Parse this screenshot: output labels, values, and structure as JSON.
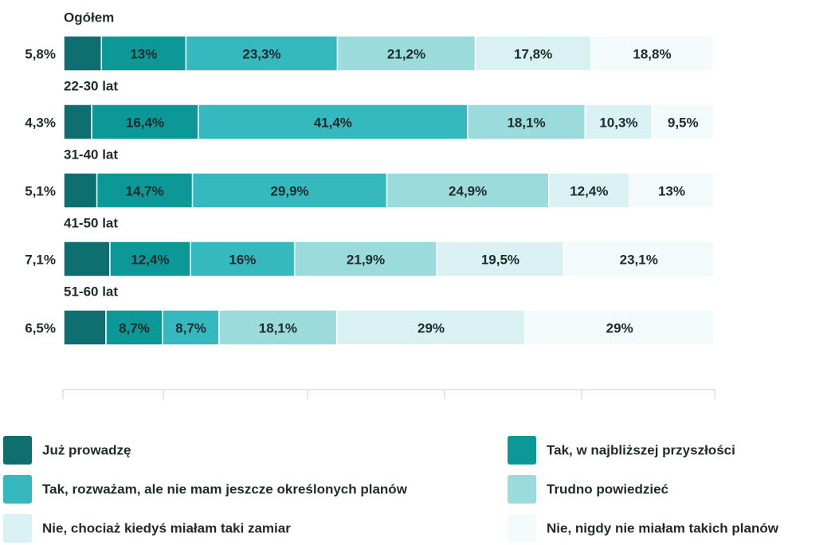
{
  "chart_data": {
    "type": "stacked_bar",
    "categories": [
      "Ogółem",
      "22-30 lat",
      "31-40 lat",
      "41-50 lat",
      "51-60 lat"
    ],
    "xlim": [
      0,
      100
    ],
    "series": [
      {
        "name": "Już prowadzę",
        "color": "#0f6e70",
        "values": [
          5.8,
          4.3,
          5.1,
          7.1,
          6.5
        ],
        "value_labels": [
          "5,8%",
          "4,3%",
          "5,1%",
          "7,1%",
          "6,5%"
        ]
      },
      {
        "name": "Tak, w najbliższej przyszłości",
        "color": "#0d9898",
        "values": [
          13,
          16.4,
          14.7,
          12.4,
          8.7
        ],
        "value_labels": [
          "13%",
          "16,4%",
          "14,7%",
          "12,4%",
          "8,7%"
        ]
      },
      {
        "name": "Tak, rozważam, ale nie mam jeszcze określonych planów",
        "color": "#35b9bf",
        "values": [
          23.3,
          41.4,
          29.9,
          16,
          8.7
        ],
        "value_labels": [
          "23,3%",
          "41,4%",
          "29,9%",
          "16%",
          "8,7%"
        ]
      },
      {
        "name": "Trudno powiedzieć",
        "color": "#9cdbdc",
        "values": [
          21.2,
          18.1,
          24.9,
          21.9,
          18.1
        ],
        "value_labels": [
          "21,2%",
          "18,1%",
          "24,9%",
          "21,9%",
          "18,1%"
        ]
      },
      {
        "name": "Nie, chociaż kiedyś miałam taki zamiar",
        "color": "#d9f1f2",
        "values": [
          17.8,
          10.3,
          12.4,
          19.5,
          29
        ],
        "value_labels": [
          "17,8%",
          "10,3%",
          "12,4%",
          "19,5%",
          "29%"
        ]
      },
      {
        "name": "Nie, nigdy nie miałam takich planów",
        "color": "#f2fafb",
        "values": [
          18.8,
          9.5,
          13,
          23.1,
          29
        ],
        "value_labels": [
          "18,8%",
          "9,5%",
          "13%",
          "23,1%",
          "29%"
        ]
      }
    ]
  }
}
